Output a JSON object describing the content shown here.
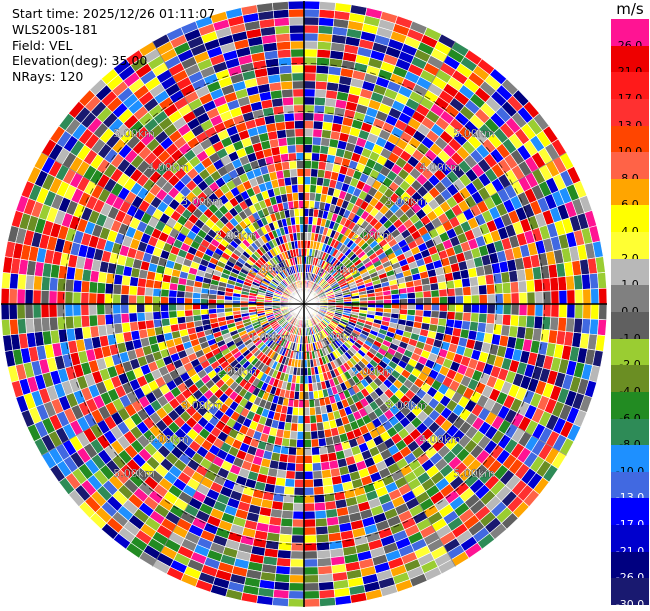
{
  "info": {
    "start_time": "Start time: 2025/12/26 01:11:07",
    "instrument": "WLS200s-181",
    "field": "Field: VEL",
    "elevation": "Elevation(deg): 35.00",
    "nrays": "NRays: 120"
  },
  "colorbar": {
    "unit": "m/s",
    "levels": [
      {
        "label": "26.0",
        "color": "#ff1493"
      },
      {
        "label": "21.0",
        "color": "#ee0000"
      },
      {
        "label": "17.0",
        "color": "#ff1a1a"
      },
      {
        "label": "13.0",
        "color": "#ff3030"
      },
      {
        "label": "10.0",
        "color": "#ff4500"
      },
      {
        "label": "8.0",
        "color": "#ff6347"
      },
      {
        "label": "6.0",
        "color": "#ffa500"
      },
      {
        "label": "4.0",
        "color": "#ffff00"
      },
      {
        "label": "2.0",
        "color": "#ffff33"
      },
      {
        "label": "1.0",
        "color": "#b8b8b8"
      },
      {
        "label": "0.0",
        "color": "#808080"
      },
      {
        "label": "-1.0",
        "color": "#606060"
      },
      {
        "label": "-2.0",
        "color": "#9acd32"
      },
      {
        "label": "-4.0",
        "color": "#6b8e23"
      },
      {
        "label": "-6.0",
        "color": "#228b22"
      },
      {
        "label": "-8.0",
        "color": "#2e8b57"
      },
      {
        "label": "-10.0",
        "color": "#1e90ff"
      },
      {
        "label": "-13.0",
        "color": "#4169e1"
      },
      {
        "label": "-17.0",
        "color": "#0000ff"
      },
      {
        "label": "-21.0",
        "color": "#0000cd"
      },
      {
        "label": "-26.0",
        "color": "#000080"
      },
      {
        "label": "-30.0",
        "color": "#191970"
      }
    ]
  },
  "chart_data": {
    "type": "ppi",
    "field": "VEL",
    "elevation_deg": 35.0,
    "n_rays": 120,
    "ring_labels": [
      "1.00km",
      "2.00km",
      "3.00km",
      "4.00km",
      "5.00km"
    ],
    "ring_label_angles_deg": [
      45,
      135,
      225,
      315
    ],
    "max_range_km": 6.3,
    "values_pattern": "noise-dominated velocity field (random values across full colour scale)"
  }
}
